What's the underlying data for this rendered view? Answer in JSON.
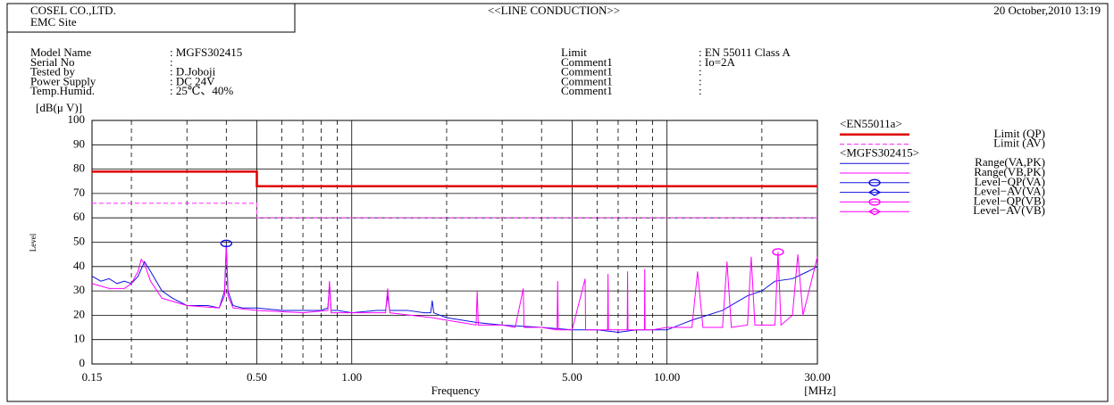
{
  "header": {
    "company": "COSEL CO.,LTD.",
    "site": "EMC Site",
    "mode": "<<LINE CONDUCTION>>",
    "date": "20 October,2010 13:19"
  },
  "info": {
    "left": [
      {
        "label": "Model Name",
        "value": ": MGFS302415"
      },
      {
        "label": "Serial No",
        "value": ":"
      },
      {
        "label": "Tested by",
        "value": ": D.Joboji"
      },
      {
        "label": "Power Supply",
        "value": ": DC 24V"
      },
      {
        "label": "Temp.Humid.",
        "value": ": 25℃、40%"
      }
    ],
    "right": [
      {
        "label": "Limit",
        "value": ": EN 55011 Class A"
      },
      {
        "label": "Comment1",
        "value": ": Io=2A"
      },
      {
        "label": "Comment1",
        "value": ":"
      },
      {
        "label": "Comment1",
        "value": ":"
      },
      {
        "label": "Comment1",
        "value": ":"
      }
    ]
  },
  "chart_data": {
    "type": "line",
    "y_unit": "[dB(μ V)]",
    "y_label": "Level",
    "x_label": "Frequency",
    "x_unit": "[MHz]",
    "x_scale": "log",
    "grid": true,
    "xlim": [
      0.15,
      30
    ],
    "ylim": [
      0,
      100
    ],
    "xticks": [
      0.15,
      {
        "value": 0.5,
        "label": "0.50"
      },
      {
        "value": 1,
        "label": "1.00"
      },
      {
        "value": 5,
        "label": "5.00"
      },
      {
        "value": 10,
        "label": "10.00"
      },
      {
        "value": 30,
        "label": "30.00"
      }
    ],
    "xgrid_minor": [
      0.2,
      0.3,
      0.4,
      0.6,
      0.7,
      0.8,
      0.9,
      2,
      3,
      4,
      6,
      7,
      8,
      9,
      20
    ],
    "yticks": [
      0,
      10,
      20,
      30,
      40,
      50,
      60,
      70,
      80,
      90,
      100
    ],
    "groups": [
      {
        "name": "<EN55011a>",
        "series": [
          {
            "name": "Limit (QP)",
            "color": "#e00000",
            "style": "thick",
            "x": [
              0.15,
              0.5,
              0.5,
              30
            ],
            "values": [
              79,
              79,
              73,
              73
            ]
          },
          {
            "name": "Limit (AV)",
            "color": "#ff44ff",
            "style": "dashed",
            "x": [
              0.15,
              0.5,
              0.5,
              30
            ],
            "values": [
              66,
              66,
              60,
              60
            ]
          }
        ]
      },
      {
        "name": "<MGFS302415>",
        "series": [
          {
            "name": "Range(VA,PK)",
            "color": "#1010e0",
            "style": "solid",
            "x": [
              0.15,
              0.16,
              0.17,
              0.18,
              0.19,
              0.2,
              0.21,
              0.22,
              0.23,
              0.25,
              0.27,
              0.3,
              0.35,
              0.38,
              0.395,
              0.4,
              0.405,
              0.42,
              0.45,
              0.5,
              0.6,
              0.7,
              0.8,
              0.84,
              0.85,
              0.86,
              0.9,
              1.0,
              1.2,
              1.28,
              1.3,
              1.32,
              1.5,
              1.7,
              1.78,
              1.8,
              1.82,
              2.0,
              2.5,
              3,
              4,
              5,
              6,
              7,
              8,
              10,
              12,
              15,
              18,
              20,
              22,
              25,
              28,
              30
            ],
            "values": [
              36,
              34,
              35,
              33,
              34,
              33,
              36,
              42,
              38,
              30,
              27,
              24,
              24,
              23,
              30,
              49,
              30,
              24,
              23,
              23,
              22,
              22,
              22,
              23,
              33,
              22,
              22,
              21,
              22,
              22,
              28,
              22,
              22,
              21,
              21,
              26,
              21,
              19,
              17,
              16,
              15,
              14,
              14,
              13,
              14,
              14,
              18,
              22,
              28,
              30,
              34,
              35,
              38,
              40
            ]
          },
          {
            "name": "Range(VB,PK)",
            "color": "#ff00ff",
            "style": "solid",
            "x": [
              0.15,
              0.17,
              0.19,
              0.2,
              0.21,
              0.215,
              0.22,
              0.23,
              0.25,
              0.3,
              0.38,
              0.395,
              0.4,
              0.405,
              0.42,
              0.5,
              0.7,
              0.84,
              0.85,
              0.86,
              1.0,
              1.28,
              1.3,
              1.32,
              1.8,
              2.0,
              2.48,
              2.5,
              2.52,
              3.0,
              3.3,
              3.5,
              3.52,
              4.0,
              4.48,
              4.5,
              4.52,
              5.0,
              5.5,
              5.52,
              6.0,
              6.48,
              6.5,
              6.52,
              7.0,
              7.48,
              7.5,
              7.52,
              8.0,
              8.48,
              8.5,
              8.52,
              9.0,
              10,
              12,
              12.5,
              13,
              15,
              15.5,
              16,
              18,
              18.5,
              19,
              22,
              22.5,
              23,
              25,
              26,
              27,
              30
            ],
            "values": [
              33,
              31,
              31,
              33,
              38,
              43,
              41,
              34,
              27,
              24,
              23,
              28,
              48,
              28,
              23,
              22,
              21,
              22,
              34,
              21,
              21,
              21,
              31,
              21,
              19,
              18,
              16,
              30,
              16,
              16,
              15,
              31,
              15,
              15,
              14,
              34,
              14,
              14,
              35,
              14,
              14,
              14,
              37,
              14,
              14,
              14,
              38,
              14,
              14,
              14,
              39,
              14,
              14,
              15,
              15,
              38,
              15,
              15,
              42,
              15,
              16,
              44,
              16,
              16,
              46,
              16,
              20,
              45,
              20,
              44
            ]
          },
          {
            "name": "Level−QP(VA)",
            "color": "#1010e0",
            "marker": "circle",
            "x": [
              0.4
            ],
            "values": [
              49.5
            ]
          },
          {
            "name": "Level−AV(VA)",
            "color": "#1010e0",
            "marker": "diamond",
            "x": [],
            "values": []
          },
          {
            "name": "Level−QP(VB)",
            "color": "#ff00ff",
            "marker": "circle",
            "x": [
              22.5
            ],
            "values": [
              46
            ]
          },
          {
            "name": "Level−AV(VB)",
            "color": "#ff00ff",
            "marker": "diamond",
            "x": [],
            "values": []
          }
        ]
      }
    ]
  }
}
